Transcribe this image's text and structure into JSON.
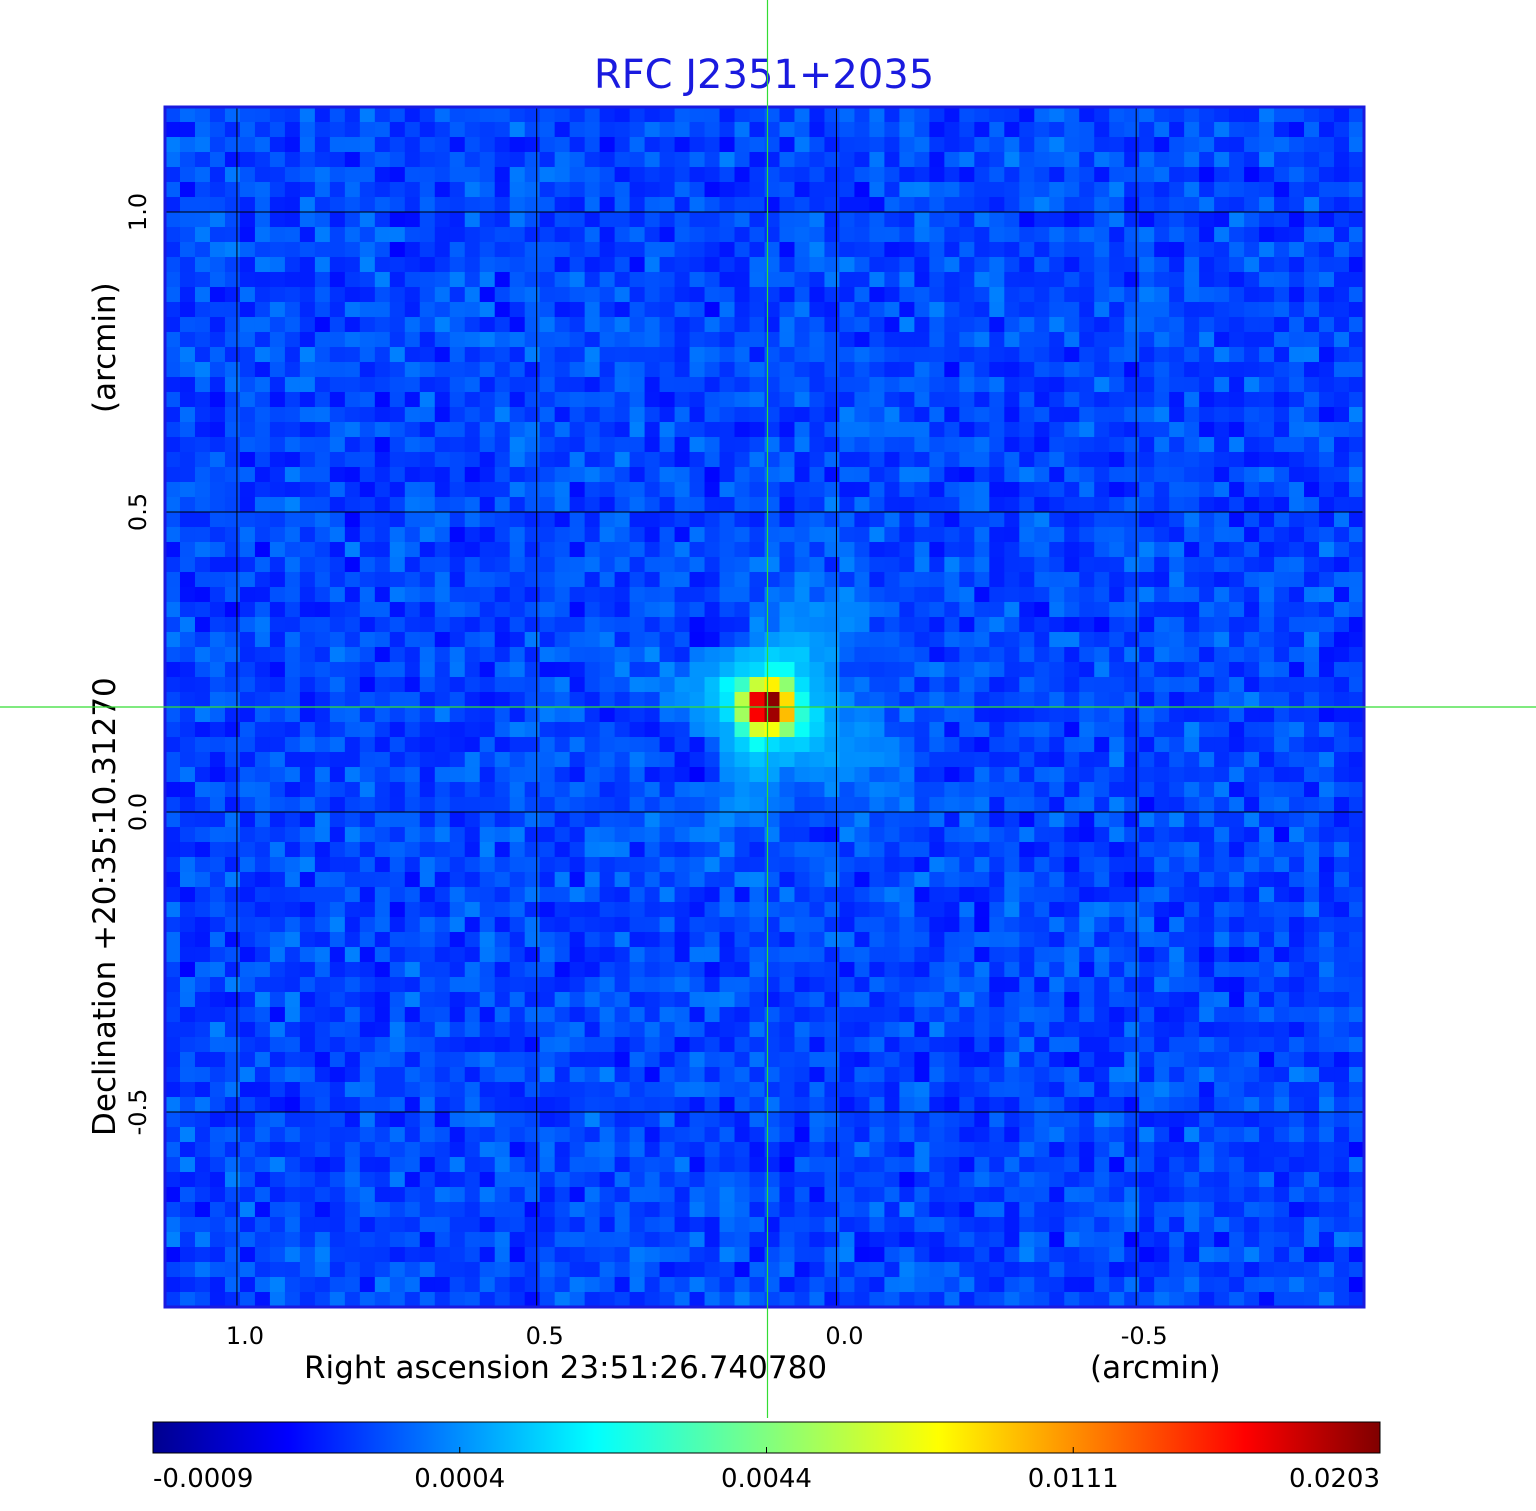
{
  "chart_data": {
    "type": "heatmap",
    "title": "RFC J2351+2035",
    "colormap": "jet",
    "grid": true,
    "x_axis": {
      "label": "Right ascension  23:51:26.740780",
      "unit_label": "(arcmin)",
      "range": [
        1.12,
        -0.88
      ],
      "ticks": [
        1.0,
        0.5,
        0.0,
        -0.5
      ],
      "tick_labels": [
        "1.0",
        "0.5",
        "0.0",
        "-0.5"
      ]
    },
    "y_axis": {
      "label": "Declination  +20:35:10.31270",
      "unit_label": "(arcmin)",
      "range": [
        -0.825,
        1.175
      ],
      "ticks": [
        1.0,
        0.5,
        0.0,
        -0.5
      ],
      "tick_labels": [
        "1.0",
        "0.5",
        "0.0",
        "-0.5"
      ]
    },
    "crosshair": {
      "x": 0.115,
      "y": 0.175,
      "color": "#33dd33"
    },
    "source": {
      "x": 0.115,
      "y": 0.175,
      "peak": 0.0203
    },
    "background_level": 0.0001,
    "colorbar": {
      "tick_labels": [
        "-0.0009",
        "0.0004",
        "0.0044",
        "0.0111",
        "0.0203"
      ],
      "tick_values": [
        -0.0009,
        0.0004,
        0.0044,
        0.0111,
        0.0203
      ]
    },
    "colors": {
      "frame": "#1a1adf",
      "grid": "#000000",
      "crosshair": "#33dd33"
    }
  }
}
